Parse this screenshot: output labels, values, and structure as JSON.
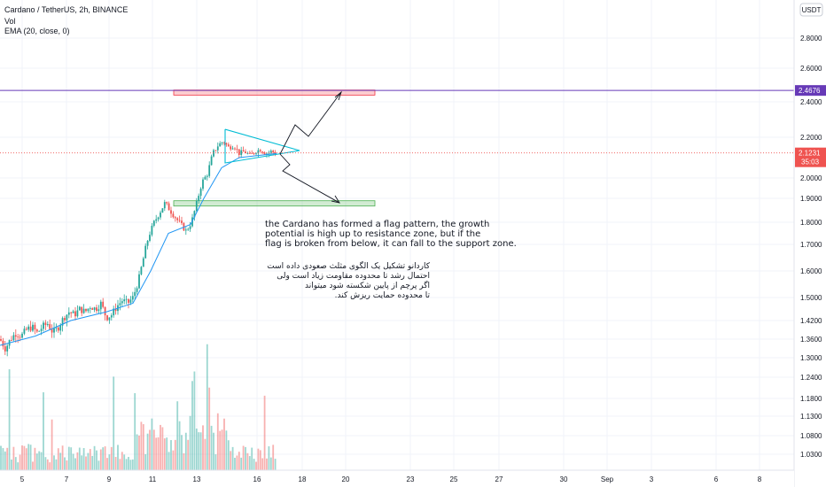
{
  "header": {
    "symbol_line": "Cardano / TetherUS, 2h, BINANCE",
    "vol_label": "Vol",
    "ema_label": "EMA (20, close, 0)"
  },
  "currency_badge": "USDT",
  "price_axis": {
    "ticks": [
      "2.8000",
      "2.6000",
      "2.4000",
      "2.2000",
      "2.0000",
      "1.9000",
      "1.8000",
      "1.7000",
      "1.6000",
      "1.5000",
      "1.4200",
      "1.3600",
      "1.3000",
      "1.2400",
      "1.1800",
      "1.1300",
      "1.0800",
      "1.0300"
    ]
  },
  "resistance_label": "2.4676",
  "current_price": {
    "price": "2.1231",
    "countdown": "35:03"
  },
  "annotations": {
    "english": [
      "the Cardano has formed a flag pattern, the growth",
      "potential is high up to resistance zone, but if the",
      "flag is broken from below, it can fall to the support zone."
    ],
    "persian": [
      "کاردانو تشکیل یک الگوی مثلث صعودی داده است",
      "احتمال رشد تا محدوده مقاومت زیاد است ولی",
      "اگر پرچم از پایین شکسته شود میتواند",
      "تا محدوده حمایت ریزش کند."
    ]
  },
  "chart_data": {
    "type": "candlestick",
    "symbol": "ADAUSDT",
    "interval": "2h",
    "exchange": "BINANCE",
    "x_tick_labels": [
      "5",
      "7",
      "9",
      "11",
      "13",
      "16",
      "18",
      "20",
      "23",
      "25",
      "27",
      "30",
      "Sep",
      "3",
      "6",
      "8"
    ],
    "close_path": [
      [
        0,
        1.36
      ],
      [
        6,
        1.33
      ],
      [
        12,
        1.36
      ],
      [
        18,
        1.38
      ],
      [
        24,
        1.37
      ],
      [
        30,
        1.39
      ],
      [
        36,
        1.4
      ],
      [
        42,
        1.38
      ],
      [
        48,
        1.4
      ],
      [
        54,
        1.41
      ],
      [
        60,
        1.38
      ],
      [
        66,
        1.4
      ],
      [
        72,
        1.43
      ],
      [
        78,
        1.45
      ],
      [
        84,
        1.44
      ],
      [
        90,
        1.46
      ],
      [
        96,
        1.45
      ],
      [
        102,
        1.47
      ],
      [
        108,
        1.46
      ],
      [
        114,
        1.48
      ],
      [
        120,
        1.43
      ],
      [
        126,
        1.44
      ],
      [
        132,
        1.47
      ],
      [
        138,
        1.49
      ],
      [
        144,
        1.48
      ],
      [
        150,
        1.5
      ],
      [
        156,
        1.56
      ],
      [
        162,
        1.65
      ],
      [
        168,
        1.74
      ],
      [
        174,
        1.8
      ],
      [
        180,
        1.84
      ],
      [
        186,
        1.88
      ],
      [
        192,
        1.85
      ],
      [
        198,
        1.82
      ],
      [
        204,
        1.79
      ],
      [
        210,
        1.76
      ],
      [
        216,
        1.8
      ],
      [
        222,
        1.88
      ],
      [
        228,
        1.98
      ],
      [
        234,
        2.02
      ],
      [
        240,
        2.12
      ],
      [
        246,
        2.16
      ],
      [
        252,
        2.18
      ],
      [
        258,
        2.15
      ],
      [
        264,
        2.16
      ],
      [
        270,
        2.12
      ],
      [
        276,
        2.13
      ],
      [
        282,
        2.11
      ],
      [
        288,
        2.13
      ],
      [
        294,
        2.14
      ],
      [
        300,
        2.12
      ],
      [
        306,
        2.13
      ],
      [
        312,
        2.12
      ]
    ],
    "ema_20": [
      [
        0,
        1.34
      ],
      [
        40,
        1.37
      ],
      [
        80,
        1.42
      ],
      [
        120,
        1.45
      ],
      [
        150,
        1.48
      ],
      [
        170,
        1.6
      ],
      [
        190,
        1.75
      ],
      [
        215,
        1.79
      ],
      [
        230,
        1.9
      ],
      [
        250,
        2.05
      ],
      [
        270,
        2.1
      ],
      [
        290,
        2.11
      ],
      [
        312,
        2.12
      ]
    ],
    "resistance_zone": {
      "low": 2.44,
      "high": 2.47
    },
    "support_zone": {
      "low": 1.87,
      "high": 1.89
    },
    "resistance_line": 2.4676,
    "current_price": 2.1231
  }
}
